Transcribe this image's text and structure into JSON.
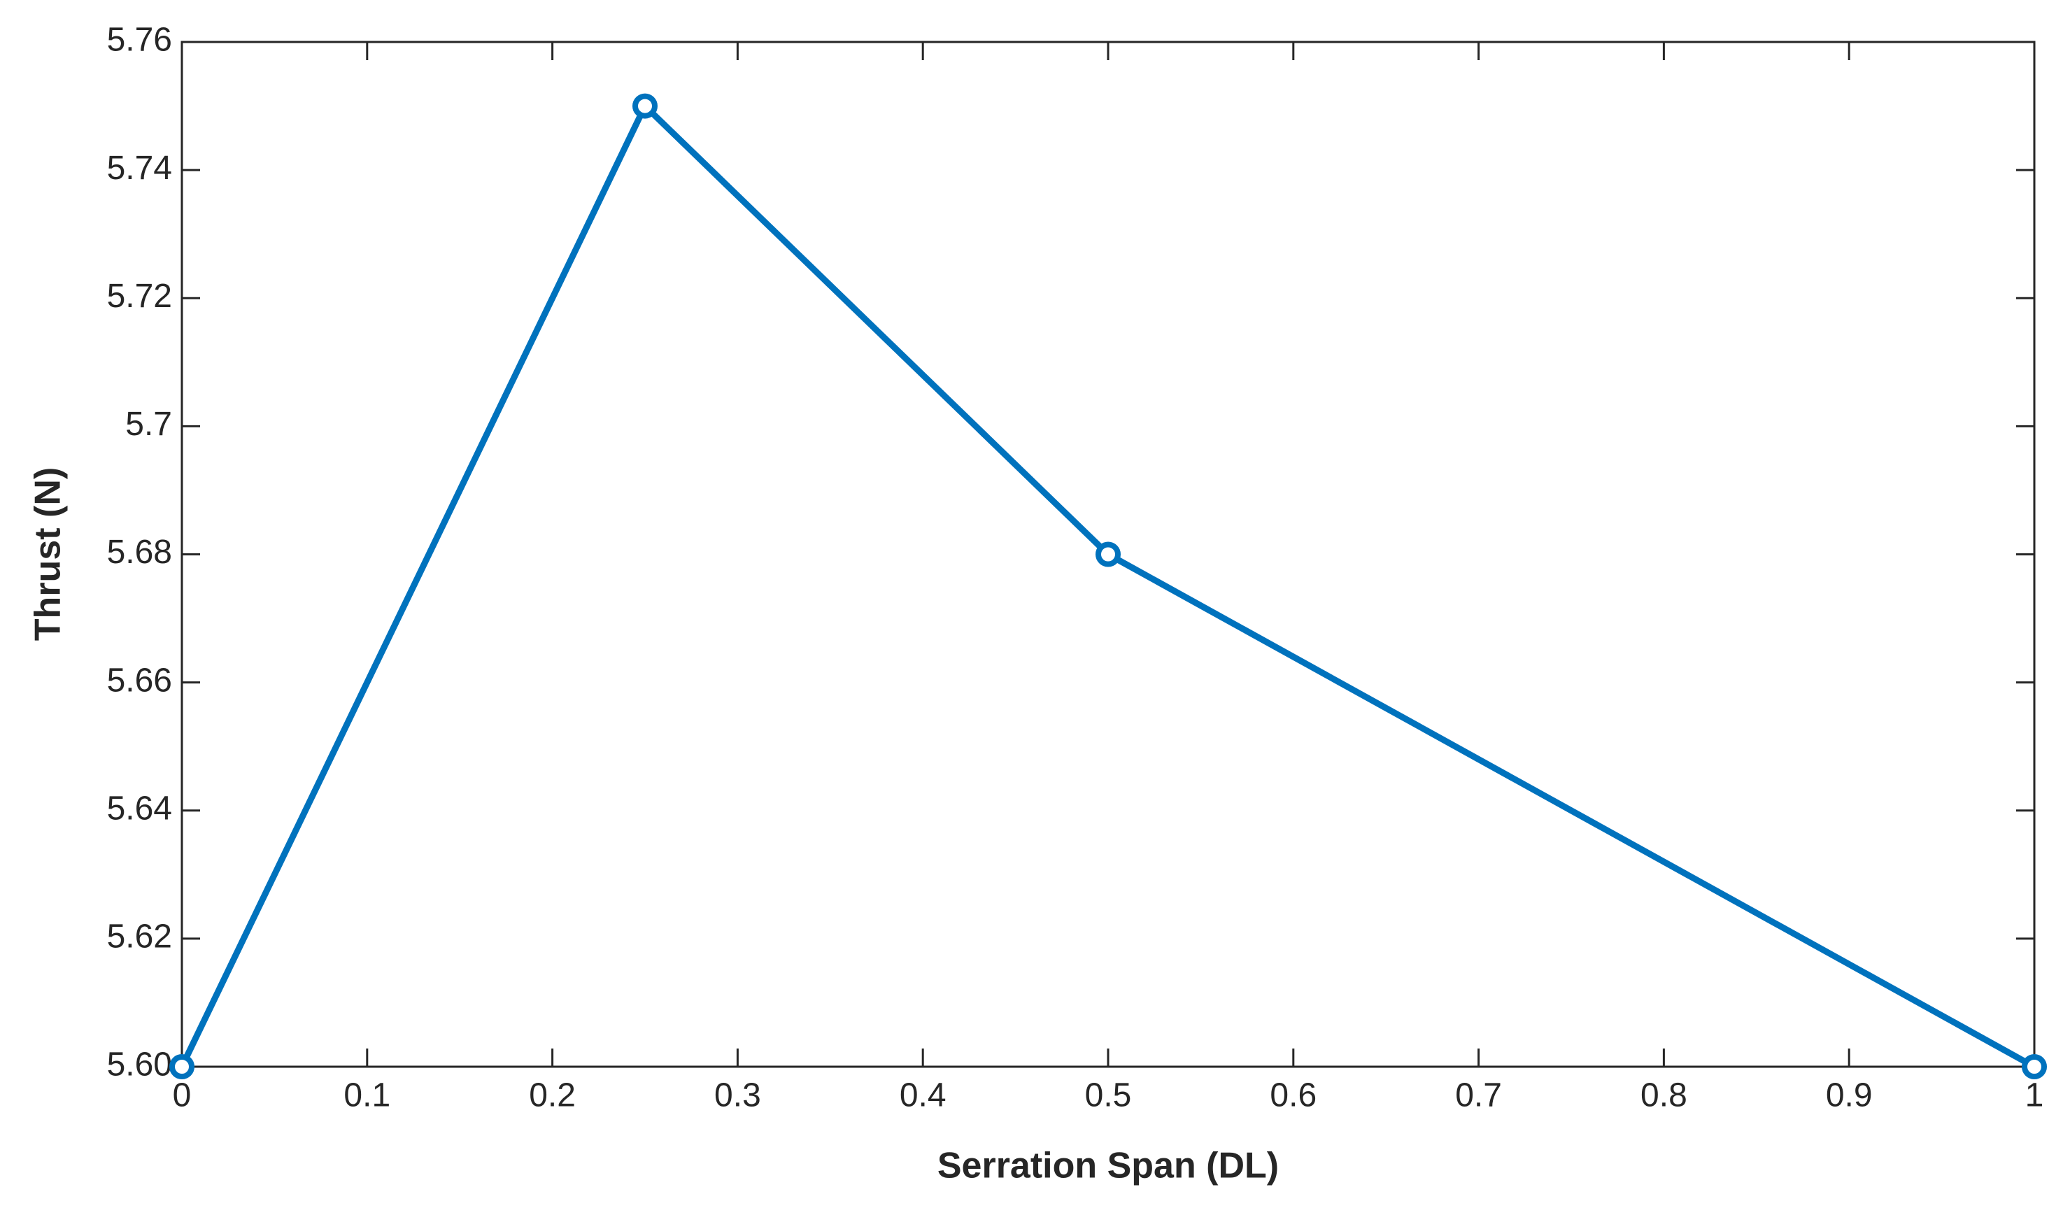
{
  "chart_data": {
    "type": "line",
    "xlabel": "Serration Span (DL)",
    "ylabel": "Thrust (N)",
    "x": [
      0,
      0.25,
      0.5,
      1
    ],
    "values": [
      5.6,
      5.75,
      5.68,
      5.6
    ],
    "color": "#0072bd",
    "xlim": [
      0,
      1
    ],
    "xticks": [
      0,
      0.1,
      0.2,
      0.3,
      0.4,
      0.5,
      0.6,
      0.7,
      0.8,
      0.9,
      1
    ],
    "ylim": [
      5.6,
      5.76
    ],
    "yticks": [
      {
        "value": 5.6,
        "label": "5.60"
      },
      {
        "value": 5.62,
        "label": "5.62"
      },
      {
        "value": 5.64,
        "label": "5.64"
      },
      {
        "value": 5.66,
        "label": "5.66"
      },
      {
        "value": 5.68,
        "label": "5.68"
      },
      5.7,
      {
        "value": 5.72,
        "label": "5.72"
      },
      {
        "value": 5.74,
        "label": "5.74"
      },
      {
        "value": 5.76,
        "label": "5.76"
      }
    ],
    "grid": false,
    "markers": true
  }
}
